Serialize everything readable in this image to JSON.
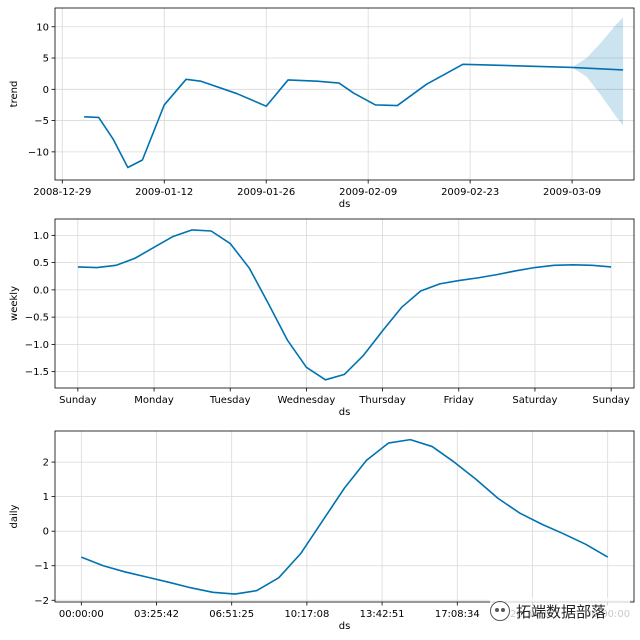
{
  "chart_data": [
    {
      "type": "line",
      "name": "trend",
      "title": "",
      "xlabel": "ds",
      "ylabel": "trend",
      "x_unit": "days since 2008-12-29",
      "xlim": [
        -1.0,
        78.5
      ],
      "ylim": [
        -14.5,
        13.0
      ],
      "xticks": [
        {
          "v": 0,
          "label": "2008-12-29"
        },
        {
          "v": 14,
          "label": "2009-01-12"
        },
        {
          "v": 28,
          "label": "2009-01-26"
        },
        {
          "v": 42,
          "label": "2009-02-09"
        },
        {
          "v": 56,
          "label": "2009-02-23"
        },
        {
          "v": 70,
          "label": "2009-03-09"
        }
      ],
      "yticks": [
        {
          "v": 10,
          "label": "10"
        },
        {
          "v": 5,
          "label": "5"
        },
        {
          "v": 0,
          "label": "0"
        },
        {
          "v": -5,
          "label": "−5"
        },
        {
          "v": -10,
          "label": "−10"
        }
      ],
      "series": [
        {
          "name": "trend",
          "x": [
            3,
            5,
            7,
            9,
            11,
            14,
            17,
            19,
            24,
            28,
            31,
            35,
            38,
            40,
            43,
            46,
            50,
            55,
            70,
            77
          ],
          "values": [
            -4.4,
            -4.5,
            -8.0,
            -12.5,
            -11.3,
            -2.5,
            1.6,
            1.3,
            -0.7,
            -2.7,
            1.5,
            1.3,
            1.0,
            -0.6,
            -2.5,
            -2.6,
            0.8,
            4.0,
            3.5,
            3.1
          ]
        }
      ],
      "band": {
        "x": [
          70,
          72,
          74,
          76,
          77
        ],
        "upper": [
          3.5,
          5.0,
          7.5,
          10.3,
          11.5
        ],
        "lower": [
          3.5,
          2.0,
          -1.0,
          -4.3,
          -5.8
        ]
      }
    },
    {
      "type": "line",
      "name": "weekly",
      "title": "",
      "xlabel": "ds",
      "ylabel": "weekly",
      "xlim": [
        -0.3,
        7.3
      ],
      "ylim": [
        -1.8,
        1.3
      ],
      "xticks": [
        {
          "v": 0,
          "label": "Sunday"
        },
        {
          "v": 1,
          "label": "Monday"
        },
        {
          "v": 2,
          "label": "Tuesday"
        },
        {
          "v": 3,
          "label": "Wednesday"
        },
        {
          "v": 4,
          "label": "Thursday"
        },
        {
          "v": 5,
          "label": "Friday"
        },
        {
          "v": 6,
          "label": "Saturday"
        },
        {
          "v": 7,
          "label": "Sunday"
        }
      ],
      "yticks": [
        {
          "v": 1.0,
          "label": "1.0"
        },
        {
          "v": 0.5,
          "label": "0.5"
        },
        {
          "v": 0.0,
          "label": "0.0"
        },
        {
          "v": -0.5,
          "label": "−0.5"
        },
        {
          "v": -1.0,
          "label": "−1.0"
        },
        {
          "v": -1.5,
          "label": "−1.5"
        }
      ],
      "series": [
        {
          "name": "weekly",
          "x": [
            0,
            0.25,
            0.5,
            0.75,
            1.0,
            1.25,
            1.5,
            1.75,
            2.0,
            2.25,
            2.5,
            2.75,
            3.0,
            3.25,
            3.5,
            3.75,
            4.0,
            4.25,
            4.5,
            4.75,
            5.0,
            5.25,
            5.5,
            5.75,
            6.0,
            6.25,
            6.5,
            6.75,
            7.0
          ],
          "values": [
            0.42,
            0.41,
            0.45,
            0.58,
            0.78,
            0.98,
            1.1,
            1.08,
            0.85,
            0.4,
            -0.25,
            -0.92,
            -1.42,
            -1.65,
            -1.55,
            -1.2,
            -0.75,
            -0.32,
            -0.02,
            0.11,
            0.17,
            0.22,
            0.28,
            0.35,
            0.41,
            0.45,
            0.46,
            0.45,
            0.42
          ]
        }
      ]
    },
    {
      "type": "line",
      "name": "daily",
      "title": "",
      "xlabel": "ds",
      "ylabel": "daily",
      "x_unit": "hours",
      "xlim": [
        -1.2,
        25.2
      ],
      "ylim": [
        -2.05,
        2.9
      ],
      "xticks": [
        {
          "v": 0,
          "label": "00:00:00"
        },
        {
          "v": 3.4283,
          "label": "03:25:42"
        },
        {
          "v": 6.8569,
          "label": "06:51:25"
        },
        {
          "v": 10.2856,
          "label": "10:17:08"
        },
        {
          "v": 13.7142,
          "label": "13:42:51"
        },
        {
          "v": 17.1428,
          "label": "17:08:34"
        },
        {
          "v": 20.5714,
          "label": "20:34:17"
        },
        {
          "v": 24,
          "label": "00:00:00"
        }
      ],
      "yticks": [
        {
          "v": 2,
          "label": "2"
        },
        {
          "v": 1,
          "label": "1"
        },
        {
          "v": 0,
          "label": "0"
        },
        {
          "v": -1,
          "label": "−1"
        },
        {
          "v": -2,
          "label": "−2"
        }
      ],
      "series": [
        {
          "name": "daily",
          "x": [
            0,
            1,
            2,
            3,
            4,
            5,
            6,
            7,
            8,
            9,
            10,
            11,
            12,
            13,
            14,
            15,
            16,
            17,
            18,
            19,
            20,
            21,
            22,
            23,
            24
          ],
          "values": [
            -0.75,
            -1.0,
            -1.18,
            -1.33,
            -1.48,
            -1.64,
            -1.77,
            -1.82,
            -1.72,
            -1.35,
            -0.65,
            0.3,
            1.25,
            2.05,
            2.55,
            2.65,
            2.45,
            2.0,
            1.5,
            0.95,
            0.52,
            0.2,
            -0.08,
            -0.38,
            -0.75
          ]
        }
      ]
    }
  ],
  "colors": {
    "line": "#0072B2",
    "band": "#0072B2",
    "grid": "#d9d9d9"
  },
  "watermark": {
    "text": "拓端数据部落",
    "icon": "wechat-icon"
  }
}
